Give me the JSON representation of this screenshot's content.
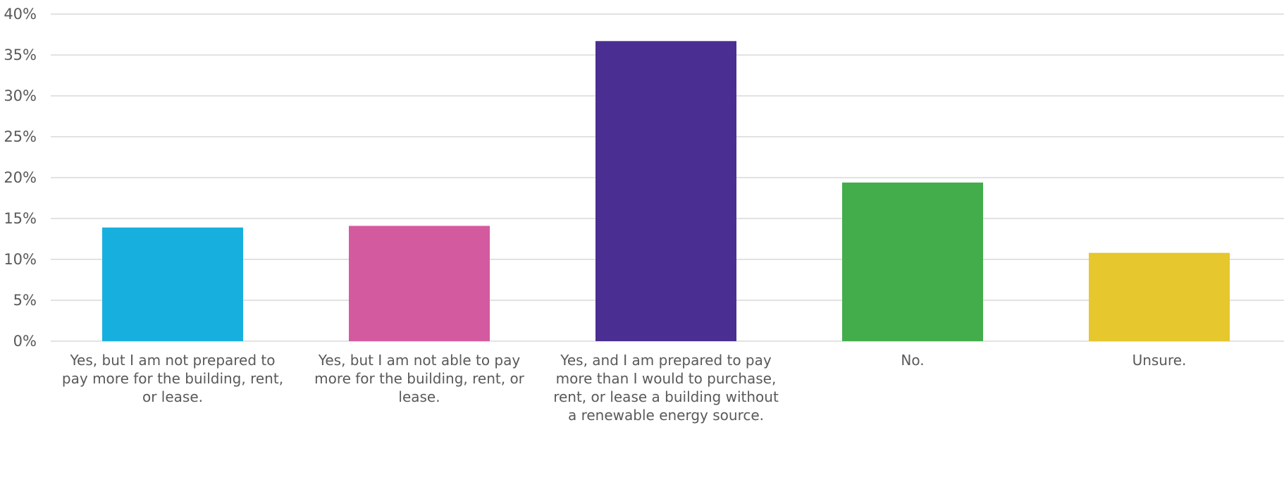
{
  "chart_data": {
    "type": "bar",
    "title": "",
    "xlabel": "",
    "ylabel": "",
    "ylim": [
      0,
      40
    ],
    "yticks": [
      0,
      5,
      10,
      15,
      20,
      25,
      30,
      35,
      40
    ],
    "ytick_labels": [
      "0%",
      "5%",
      "10%",
      "15%",
      "20%",
      "25%",
      "30%",
      "35%",
      "40%"
    ],
    "grid": true,
    "legend": "none",
    "categories": [
      "Yes, but I am not prepared to pay more for the building, rent, or lease.",
      "Yes, but I am not able to pay more for the building, rent, or lease.",
      "Yes, and I am prepared to pay more than I would to purchase, rent, or lease a building without a renewable energy source.",
      "No.",
      "Unsure."
    ],
    "category_label_lines": [
      [
        "Yes, but I am not prepared to",
        "pay more for the building, rent,",
        "or lease."
      ],
      [
        "Yes, but I am not able to pay",
        "more for the building, rent, or",
        "lease."
      ],
      [
        "Yes, and I am prepared to pay",
        "more than I would to purchase,",
        "rent, or lease a building without",
        "a renewable energy source."
      ],
      [
        "No."
      ],
      [
        "Unsure."
      ]
    ],
    "values": [
      13.9,
      14.1,
      36.7,
      19.4,
      10.8
    ],
    "colors": [
      "#17b0de",
      "#d45aa0",
      "#4a2e91",
      "#43ad4b",
      "#e6c72d"
    ]
  }
}
